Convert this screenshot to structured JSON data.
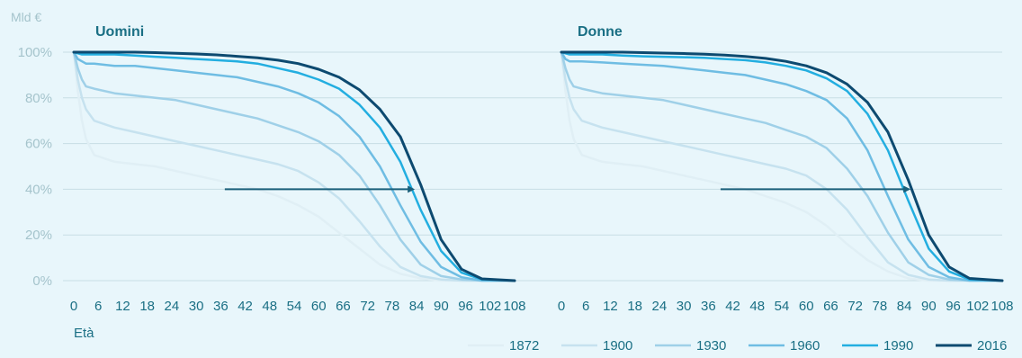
{
  "y_unit_label": "Mld €",
  "x_axis_title": "Età",
  "colors": {
    "background": "#e8f6fb",
    "axis_text": "#1a6f84",
    "ytick_text": "#a5c4cc",
    "grid": "#c7dde4",
    "title_text": "#1a6f84",
    "arrow": "#1a5f7a"
  },
  "chart_data": [
    {
      "type": "line",
      "title": "Uomini",
      "xlabel": "Età",
      "ylabel": "Mld €",
      "xlim": [
        0,
        108
      ],
      "ylim": [
        0,
        100
      ],
      "grid": true,
      "legend": "bottom-right",
      "x_ticks": [
        0,
        6,
        12,
        18,
        24,
        30,
        36,
        42,
        48,
        54,
        60,
        66,
        72,
        78,
        84,
        90,
        96,
        102,
        108
      ],
      "y_ticks": [
        "0%",
        "20%",
        "40%",
        "60%",
        "80%",
        "100%"
      ],
      "y_tick_values": [
        0,
        20,
        40,
        60,
        80,
        100
      ],
      "arrow": {
        "from": [
          37,
          40
        ],
        "to": [
          84,
          40
        ]
      },
      "series": [
        {
          "name": "1872",
          "color": "#e0eff5",
          "x": [
            0,
            1,
            2,
            3,
            5,
            10,
            15,
            20,
            25,
            30,
            35,
            40,
            45,
            50,
            55,
            60,
            65,
            70,
            75,
            80,
            85,
            90,
            95,
            100,
            108
          ],
          "values": [
            100,
            83,
            70,
            62,
            55,
            52,
            51,
            50,
            48,
            46,
            44,
            42,
            40,
            37,
            33,
            28,
            21,
            14,
            7,
            3,
            1,
            0,
            0,
            0,
            0
          ]
        },
        {
          "name": "1900",
          "color": "#c6e2ef",
          "x": [
            0,
            1,
            2,
            3,
            5,
            10,
            15,
            20,
            25,
            30,
            35,
            40,
            45,
            50,
            55,
            60,
            65,
            70,
            75,
            80,
            85,
            90,
            95,
            100,
            108
          ],
          "values": [
            100,
            88,
            80,
            75,
            70,
            67,
            65,
            63,
            61,
            59,
            57,
            55,
            53,
            51,
            48,
            43,
            36,
            26,
            15,
            6,
            2,
            0.5,
            0,
            0,
            0
          ]
        },
        {
          "name": "1930",
          "color": "#9fd0e8",
          "x": [
            0,
            1,
            2,
            3,
            5,
            10,
            15,
            20,
            25,
            30,
            35,
            40,
            45,
            50,
            55,
            60,
            65,
            70,
            75,
            80,
            85,
            90,
            95,
            100,
            108
          ],
          "values": [
            100,
            93,
            88,
            85,
            84,
            82,
            81,
            80,
            79,
            77,
            75,
            73,
            71,
            68,
            65,
            61,
            55,
            46,
            33,
            18,
            7,
            2,
            0.5,
            0,
            0
          ]
        },
        {
          "name": "1960",
          "color": "#6fbde3",
          "x": [
            0,
            1,
            2,
            3,
            5,
            10,
            15,
            20,
            25,
            30,
            35,
            40,
            45,
            50,
            55,
            60,
            65,
            70,
            75,
            80,
            85,
            90,
            95,
            100,
            108
          ],
          "values": [
            100,
            97,
            96,
            95,
            95,
            94,
            94,
            93,
            92,
            91,
            90,
            89,
            87,
            85,
            82,
            78,
            72,
            63,
            50,
            33,
            17,
            6,
            1.5,
            0,
            0
          ]
        },
        {
          "name": "1990",
          "color": "#23aee0",
          "x": [
            0,
            1,
            2,
            3,
            5,
            10,
            15,
            20,
            25,
            30,
            35,
            40,
            45,
            50,
            55,
            60,
            65,
            70,
            75,
            80,
            85,
            90,
            95,
            100,
            108
          ],
          "values": [
            100,
            99.5,
            99,
            99,
            99,
            99,
            98.5,
            98,
            97.5,
            97,
            96.5,
            96,
            95,
            93,
            91,
            88,
            84,
            77,
            67,
            52,
            31,
            13,
            3.5,
            0.5,
            0
          ]
        },
        {
          "name": "2016",
          "color": "#0d4a70",
          "x": [
            0,
            1,
            2,
            3,
            5,
            10,
            15,
            20,
            25,
            30,
            35,
            40,
            45,
            50,
            55,
            60,
            65,
            70,
            75,
            80,
            85,
            90,
            95,
            100,
            108
          ],
          "values": [
            100,
            100,
            100,
            100,
            100,
            100,
            100,
            99.8,
            99.5,
            99.2,
            98.8,
            98.2,
            97.5,
            96.5,
            95,
            92.5,
            89,
            83.5,
            75,
            63,
            42,
            18,
            5,
            0.8,
            0
          ]
        }
      ]
    },
    {
      "type": "line",
      "title": "Donne",
      "xlabel": "",
      "ylabel": "",
      "xlim": [
        0,
        108
      ],
      "ylim": [
        0,
        100
      ],
      "grid": true,
      "x_ticks": [
        0,
        6,
        12,
        18,
        24,
        30,
        36,
        42,
        48,
        54,
        60,
        66,
        72,
        78,
        84,
        90,
        96,
        102,
        108
      ],
      "arrow": {
        "from": [
          39,
          40
        ],
        "to": [
          86,
          40
        ]
      },
      "series": [
        {
          "name": "1872",
          "color": "#e0eff5",
          "x": [
            0,
            1,
            2,
            3,
            5,
            10,
            15,
            20,
            25,
            30,
            35,
            40,
            45,
            50,
            55,
            60,
            65,
            70,
            75,
            80,
            85,
            90,
            95,
            100,
            108
          ],
          "values": [
            100,
            83,
            70,
            62,
            55,
            52,
            51,
            50,
            48,
            46,
            44,
            42,
            40,
            37,
            34,
            30,
            24,
            16,
            9,
            4,
            1,
            0,
            0,
            0,
            0
          ]
        },
        {
          "name": "1900",
          "color": "#c6e2ef",
          "x": [
            0,
            1,
            2,
            3,
            5,
            10,
            15,
            20,
            25,
            30,
            35,
            40,
            45,
            50,
            55,
            60,
            65,
            70,
            75,
            80,
            85,
            90,
            95,
            100,
            108
          ],
          "values": [
            100,
            88,
            80,
            75,
            70,
            67,
            65,
            63,
            61,
            59,
            57,
            55,
            53,
            51,
            49,
            46,
            40,
            31,
            19,
            8,
            2.5,
            0.5,
            0,
            0,
            0
          ]
        },
        {
          "name": "1930",
          "color": "#9fd0e8",
          "x": [
            0,
            1,
            2,
            3,
            5,
            10,
            15,
            20,
            25,
            30,
            35,
            40,
            45,
            50,
            55,
            60,
            65,
            70,
            75,
            80,
            85,
            90,
            95,
            100,
            108
          ],
          "values": [
            100,
            93,
            88,
            85,
            84,
            82,
            81,
            80,
            79,
            77,
            75,
            73,
            71,
            69,
            66,
            63,
            58,
            49,
            37,
            21,
            8,
            2.5,
            0.5,
            0,
            0
          ]
        },
        {
          "name": "1960",
          "color": "#6fbde3",
          "x": [
            0,
            1,
            2,
            3,
            5,
            10,
            15,
            20,
            25,
            30,
            35,
            40,
            45,
            50,
            55,
            60,
            65,
            70,
            75,
            80,
            85,
            90,
            95,
            100,
            108
          ],
          "values": [
            100,
            97,
            96,
            96,
            96,
            95.5,
            95,
            94.5,
            94,
            93,
            92,
            91,
            90,
            88,
            86,
            83,
            79,
            71,
            57,
            37,
            18,
            6,
            1.5,
            0,
            0
          ]
        },
        {
          "name": "1990",
          "color": "#23aee0",
          "x": [
            0,
            1,
            2,
            3,
            5,
            10,
            15,
            20,
            25,
            30,
            35,
            40,
            45,
            50,
            55,
            60,
            65,
            70,
            75,
            80,
            85,
            90,
            95,
            100,
            108
          ],
          "values": [
            100,
            99.5,
            99,
            99,
            99,
            99,
            98.5,
            98.2,
            98,
            97.8,
            97.5,
            97,
            96.5,
            95.5,
            94,
            92,
            88.5,
            83,
            73,
            57,
            35,
            14,
            4,
            0.5,
            0
          ]
        },
        {
          "name": "2016",
          "color": "#0d4a70",
          "x": [
            0,
            1,
            2,
            3,
            5,
            10,
            15,
            20,
            25,
            30,
            35,
            40,
            45,
            50,
            55,
            60,
            65,
            70,
            75,
            80,
            85,
            90,
            95,
            100,
            108
          ],
          "values": [
            100,
            100,
            100,
            100,
            100,
            100,
            100,
            99.8,
            99.6,
            99.4,
            99.1,
            98.7,
            98.1,
            97.3,
            96,
            94,
            91,
            86,
            78,
            65,
            44,
            20,
            6,
            1,
            0
          ]
        }
      ]
    }
  ],
  "legend": {
    "items": [
      "1872",
      "1900",
      "1930",
      "1960",
      "1990",
      "2016"
    ]
  }
}
